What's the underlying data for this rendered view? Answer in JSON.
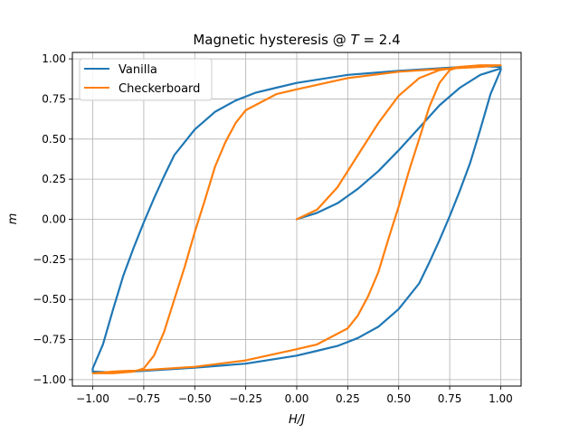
{
  "chart_data": {
    "type": "line",
    "title": "Magnetic hysteresis @ T = 2.4",
    "title_prefix": "Magnetic hysteresis @ ",
    "title_var": "T",
    "title_rest": " = 2.4",
    "xlabel": "H/J",
    "ylabel": "m",
    "xlim": [
      -1.1,
      1.1
    ],
    "ylim": [
      -1.04,
      1.04
    ],
    "xticks": [
      -1.0,
      -0.75,
      -0.5,
      -0.25,
      0.0,
      0.25,
      0.5,
      0.75,
      1.0
    ],
    "xtick_labels": [
      "−1.00",
      "−0.75",
      "−0.50",
      "−0.25",
      "0.00",
      "0.25",
      "0.50",
      "0.75",
      "1.00"
    ],
    "yticks": [
      -1.0,
      -0.75,
      -0.5,
      -0.25,
      0.0,
      0.25,
      0.5,
      0.75,
      1.0
    ],
    "ytick_labels": [
      "−1.00",
      "−0.75",
      "−0.50",
      "−0.25",
      "0.00",
      "0.25",
      "0.50",
      "0.75",
      "1.00"
    ],
    "grid": true,
    "legend_position": "top-left",
    "series": [
      {
        "name": "Vanilla",
        "color": "#1f77b4",
        "points": [
          [
            0.0,
            0.0
          ],
          [
            0.1,
            0.04
          ],
          [
            0.2,
            0.1
          ],
          [
            0.3,
            0.19
          ],
          [
            0.4,
            0.3
          ],
          [
            0.5,
            0.43
          ],
          [
            0.6,
            0.57
          ],
          [
            0.7,
            0.71
          ],
          [
            0.8,
            0.82
          ],
          [
            0.9,
            0.9
          ],
          [
            1.0,
            0.94
          ],
          [
            1.0,
            0.93
          ],
          [
            0.95,
            0.78
          ],
          [
            0.9,
            0.56
          ],
          [
            0.85,
            0.35
          ],
          [
            0.8,
            0.18
          ],
          [
            0.75,
            0.02
          ],
          [
            0.7,
            -0.13
          ],
          [
            0.65,
            -0.27
          ],
          [
            0.6,
            -0.4
          ],
          [
            0.5,
            -0.56
          ],
          [
            0.4,
            -0.67
          ],
          [
            0.3,
            -0.74
          ],
          [
            0.2,
            -0.79
          ],
          [
            0.1,
            -0.82
          ],
          [
            0.0,
            -0.85
          ],
          [
            -0.25,
            -0.9
          ],
          [
            -0.5,
            -0.925
          ],
          [
            -0.75,
            -0.945
          ],
          [
            -0.9,
            -0.955
          ],
          [
            -1.0,
            -0.95
          ],
          [
            -1.0,
            -0.93
          ],
          [
            -0.95,
            -0.78
          ],
          [
            -0.9,
            -0.56
          ],
          [
            -0.85,
            -0.35
          ],
          [
            -0.8,
            -0.18
          ],
          [
            -0.75,
            -0.02
          ],
          [
            -0.7,
            0.13
          ],
          [
            -0.65,
            0.27
          ],
          [
            -0.6,
            0.4
          ],
          [
            -0.5,
            0.56
          ],
          [
            -0.4,
            0.67
          ],
          [
            -0.3,
            0.74
          ],
          [
            -0.2,
            0.79
          ],
          [
            -0.1,
            0.82
          ],
          [
            0.0,
            0.85
          ],
          [
            0.25,
            0.9
          ],
          [
            0.5,
            0.925
          ],
          [
            0.75,
            0.945
          ],
          [
            0.9,
            0.955
          ],
          [
            1.0,
            0.95
          ]
        ]
      },
      {
        "name": "Checkerboard",
        "color": "#ff7f0e",
        "points": [
          [
            0.0,
            0.0
          ],
          [
            0.1,
            0.06
          ],
          [
            0.2,
            0.2
          ],
          [
            0.3,
            0.4
          ],
          [
            0.4,
            0.6
          ],
          [
            0.5,
            0.77
          ],
          [
            0.6,
            0.88
          ],
          [
            0.7,
            0.93
          ],
          [
            0.8,
            0.95
          ],
          [
            1.0,
            0.96
          ],
          [
            0.9,
            0.96
          ],
          [
            0.8,
            0.95
          ],
          [
            0.75,
            0.93
          ],
          [
            0.7,
            0.85
          ],
          [
            0.65,
            0.7
          ],
          [
            0.6,
            0.5
          ],
          [
            0.55,
            0.3
          ],
          [
            0.5,
            0.08
          ],
          [
            0.45,
            -0.12
          ],
          [
            0.4,
            -0.33
          ],
          [
            0.35,
            -0.48
          ],
          [
            0.3,
            -0.6
          ],
          [
            0.25,
            -0.68
          ],
          [
            0.1,
            -0.78
          ],
          [
            0.0,
            -0.81
          ],
          [
            -0.25,
            -0.88
          ],
          [
            -0.5,
            -0.92
          ],
          [
            -0.75,
            -0.94
          ],
          [
            -0.9,
            -0.95
          ],
          [
            -1.0,
            -0.96
          ],
          [
            -0.9,
            -0.96
          ],
          [
            -0.8,
            -0.95
          ],
          [
            -0.75,
            -0.93
          ],
          [
            -0.7,
            -0.85
          ],
          [
            -0.65,
            -0.7
          ],
          [
            -0.6,
            -0.5
          ],
          [
            -0.55,
            -0.3
          ],
          [
            -0.5,
            -0.08
          ],
          [
            -0.45,
            0.12
          ],
          [
            -0.4,
            0.33
          ],
          [
            -0.35,
            0.48
          ],
          [
            -0.3,
            0.6
          ],
          [
            -0.25,
            0.68
          ],
          [
            -0.1,
            0.78
          ],
          [
            0.0,
            0.81
          ],
          [
            0.25,
            0.88
          ],
          [
            0.5,
            0.92
          ],
          [
            0.75,
            0.94
          ],
          [
            0.9,
            0.95
          ],
          [
            1.0,
            0.96
          ]
        ]
      }
    ]
  }
}
